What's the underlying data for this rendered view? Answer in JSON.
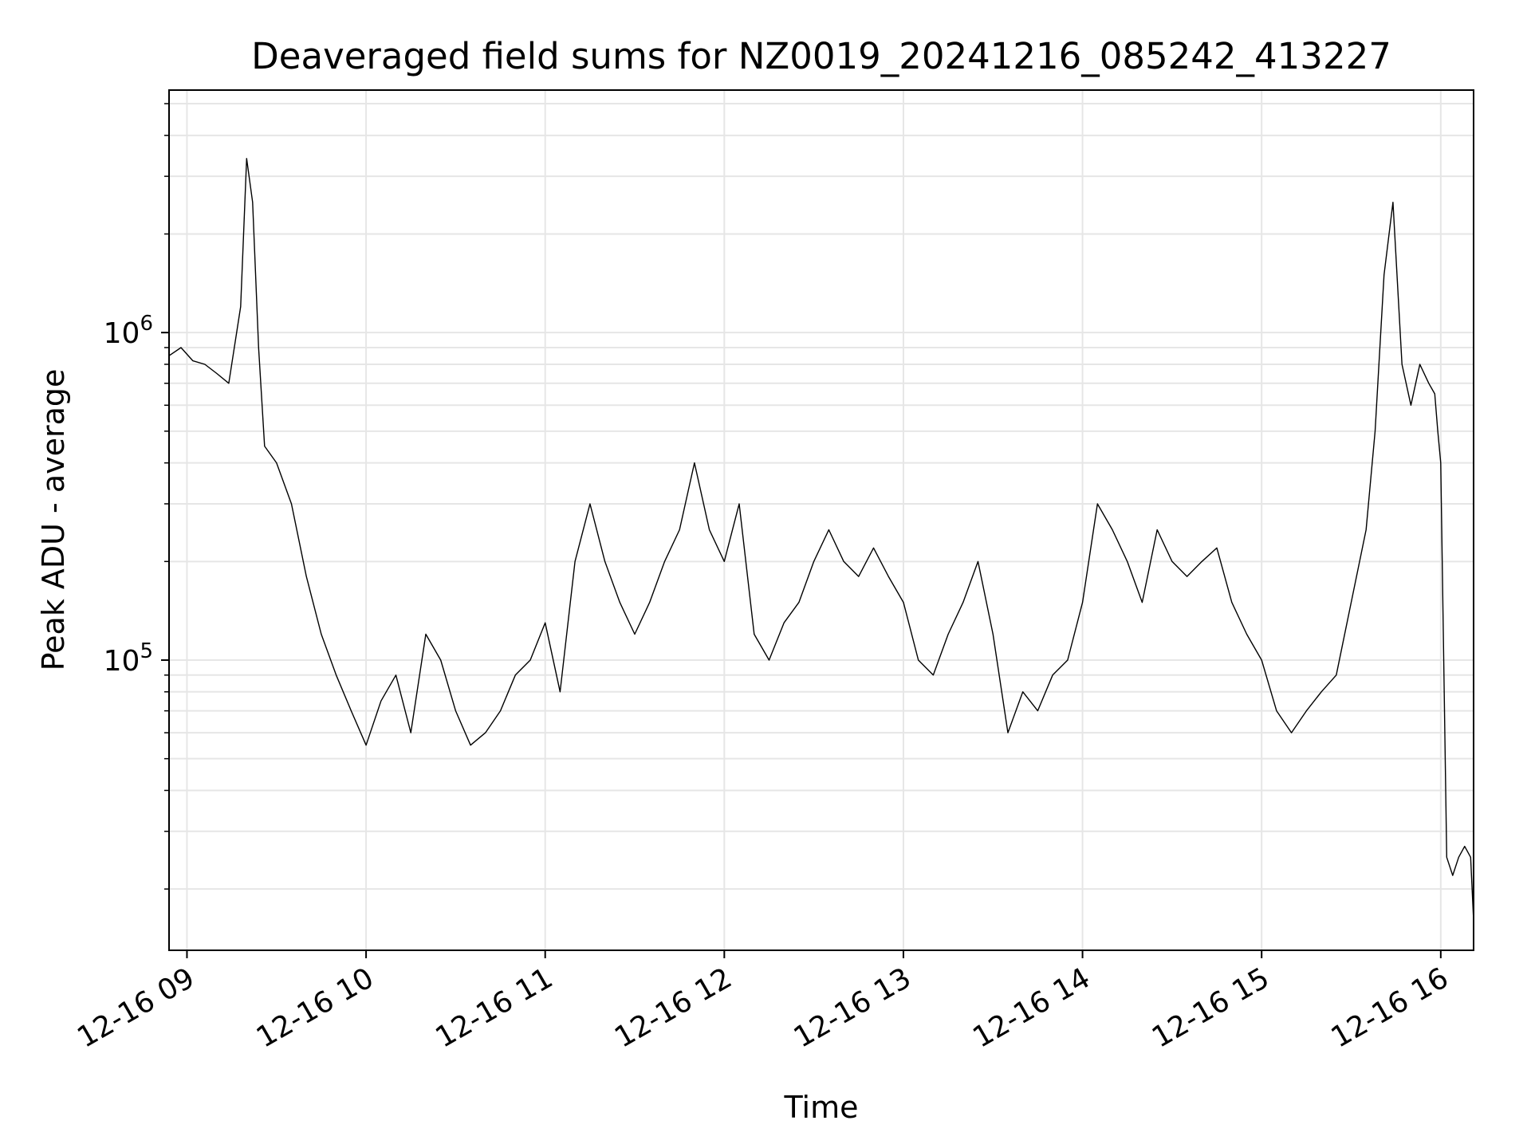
{
  "chart_data": {
    "type": "line",
    "title": "Deaveraged field sums for NZ0019_20241216_085242_413227",
    "xlabel": "Time",
    "ylabel": "Peak ADU - average",
    "yscale": "log",
    "ylim": [
      13000,
      5500000
    ],
    "xlim": [
      "2024-12-16 08:54",
      "2024-12-16 16:11"
    ],
    "grid": true,
    "line_color": "#000000",
    "grid_color": "#e6e6e6",
    "x_ticks": [
      {
        "value": "2024-12-16 09:00",
        "label": "12-16 09"
      },
      {
        "value": "2024-12-16 10:00",
        "label": "12-16 10"
      },
      {
        "value": "2024-12-16 11:00",
        "label": "12-16 11"
      },
      {
        "value": "2024-12-16 12:00",
        "label": "12-16 12"
      },
      {
        "value": "2024-12-16 13:00",
        "label": "12-16 13"
      },
      {
        "value": "2024-12-16 14:00",
        "label": "12-16 14"
      },
      {
        "value": "2024-12-16 15:00",
        "label": "12-16 15"
      },
      {
        "value": "2024-12-16 16:00",
        "label": "12-16 16"
      }
    ],
    "y_ticks": [
      {
        "value": 100000,
        "base": "10",
        "exp": "5"
      },
      {
        "value": 1000000,
        "base": "10",
        "exp": "6"
      }
    ],
    "series": [
      {
        "x": [
          "2024-12-16 08:54",
          "2024-12-16 08:58",
          "2024-12-16 09:02",
          "2024-12-16 09:06",
          "2024-12-16 09:10",
          "2024-12-16 09:14",
          "2024-12-16 09:18",
          "2024-12-16 09:20",
          "2024-12-16 09:22",
          "2024-12-16 09:24",
          "2024-12-16 09:26",
          "2024-12-16 09:30",
          "2024-12-16 09:35",
          "2024-12-16 09:40",
          "2024-12-16 09:45",
          "2024-12-16 09:50",
          "2024-12-16 09:55",
          "2024-12-16 10:00",
          "2024-12-16 10:05",
          "2024-12-16 10:10",
          "2024-12-16 10:15",
          "2024-12-16 10:20",
          "2024-12-16 10:25",
          "2024-12-16 10:30",
          "2024-12-16 10:35",
          "2024-12-16 10:40",
          "2024-12-16 10:45",
          "2024-12-16 10:50",
          "2024-12-16 10:55",
          "2024-12-16 11:00",
          "2024-12-16 11:05",
          "2024-12-16 11:10",
          "2024-12-16 11:15",
          "2024-12-16 11:20",
          "2024-12-16 11:25",
          "2024-12-16 11:30",
          "2024-12-16 11:35",
          "2024-12-16 11:40",
          "2024-12-16 11:45",
          "2024-12-16 11:50",
          "2024-12-16 11:55",
          "2024-12-16 12:00",
          "2024-12-16 12:05",
          "2024-12-16 12:10",
          "2024-12-16 12:15",
          "2024-12-16 12:20",
          "2024-12-16 12:25",
          "2024-12-16 12:30",
          "2024-12-16 12:35",
          "2024-12-16 12:40",
          "2024-12-16 12:45",
          "2024-12-16 12:50",
          "2024-12-16 12:55",
          "2024-12-16 13:00",
          "2024-12-16 13:05",
          "2024-12-16 13:10",
          "2024-12-16 13:15",
          "2024-12-16 13:20",
          "2024-12-16 13:25",
          "2024-12-16 13:30",
          "2024-12-16 13:35",
          "2024-12-16 13:40",
          "2024-12-16 13:45",
          "2024-12-16 13:50",
          "2024-12-16 13:55",
          "2024-12-16 14:00",
          "2024-12-16 14:05",
          "2024-12-16 14:10",
          "2024-12-16 14:15",
          "2024-12-16 14:20",
          "2024-12-16 14:25",
          "2024-12-16 14:30",
          "2024-12-16 14:35",
          "2024-12-16 14:40",
          "2024-12-16 14:45",
          "2024-12-16 14:50",
          "2024-12-16 14:55",
          "2024-12-16 15:00",
          "2024-12-16 15:05",
          "2024-12-16 15:10",
          "2024-12-16 15:15",
          "2024-12-16 15:20",
          "2024-12-16 15:25",
          "2024-12-16 15:30",
          "2024-12-16 15:35",
          "2024-12-16 15:38",
          "2024-12-16 15:41",
          "2024-12-16 15:44",
          "2024-12-16 15:47",
          "2024-12-16 15:50",
          "2024-12-16 15:53",
          "2024-12-16 15:56",
          "2024-12-16 15:58",
          "2024-12-16 15:59",
          "2024-12-16 16:00",
          "2024-12-16 16:02",
          "2024-12-16 16:04",
          "2024-12-16 16:06",
          "2024-12-16 16:08",
          "2024-12-16 16:10",
          "2024-12-16 16:11"
        ],
        "y": [
          850000,
          900000,
          820000,
          800000,
          750000,
          700000,
          1200000,
          3400000,
          2500000,
          900000,
          450000,
          400000,
          300000,
          180000,
          120000,
          90000,
          70000,
          55000,
          75000,
          90000,
          60000,
          120000,
          100000,
          70000,
          55000,
          60000,
          70000,
          90000,
          100000,
          130000,
          80000,
          200000,
          300000,
          200000,
          150000,
          120000,
          150000,
          200000,
          250000,
          400000,
          250000,
          200000,
          300000,
          120000,
          100000,
          130000,
          150000,
          200000,
          250000,
          200000,
          180000,
          220000,
          180000,
          150000,
          100000,
          90000,
          120000,
          150000,
          200000,
          120000,
          60000,
          80000,
          70000,
          90000,
          100000,
          150000,
          300000,
          250000,
          200000,
          150000,
          250000,
          200000,
          180000,
          200000,
          220000,
          150000,
          120000,
          100000,
          70000,
          60000,
          70000,
          80000,
          90000,
          150000,
          250000,
          500000,
          1500000,
          2500000,
          800000,
          600000,
          800000,
          700000,
          650000,
          500000,
          400000,
          25000,
          22000,
          25000,
          27000,
          25000,
          16000
        ]
      }
    ]
  }
}
